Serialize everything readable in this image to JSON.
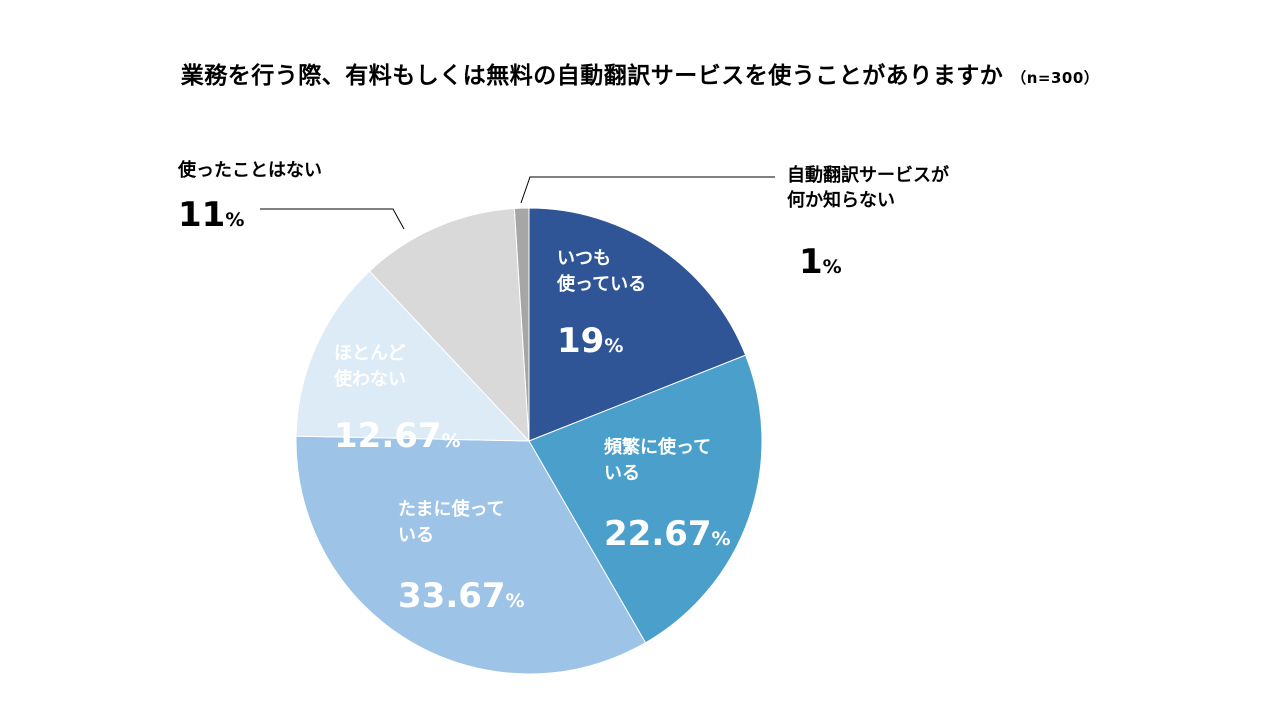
{
  "chart_data": {
    "type": "pie",
    "title": "業務を行う際、有料もしくは無料の自動翻訳サービスを使うことがありますか",
    "sample_note": "（n=300）",
    "start_angle_deg": 0,
    "direction": "clockwise",
    "slices": [
      {
        "label_lines": [
          "いつも",
          "使っている"
        ],
        "value": 19,
        "value_text": "19",
        "color": "#2F5597",
        "text_color": "#FFFFFF",
        "outside": false
      },
      {
        "label_lines": [
          "頻繁に使って",
          "いる"
        ],
        "value": 22.67,
        "value_text": "22.67",
        "color": "#4AA0CB",
        "text_color": "#FFFFFF",
        "outside": false
      },
      {
        "label_lines": [
          "たまに使って",
          "いる"
        ],
        "value": 33.67,
        "value_text": "33.67",
        "color": "#9DC3E6",
        "text_color": "#FFFFFF",
        "outside": false
      },
      {
        "label_lines": [
          "ほとんど",
          "使わない"
        ],
        "value": 12.67,
        "value_text": "12.67",
        "color": "#DDEBF7",
        "text_color": "#FFFFFF",
        "outside": false
      },
      {
        "label_lines": [
          "使ったことはない"
        ],
        "value": 11,
        "value_text": "11",
        "color": "#D9D9D9",
        "text_color": "#000000",
        "outside": true
      },
      {
        "label_lines": [
          "自動翻訳サービスが",
          "何か知らない"
        ],
        "value": 1,
        "value_text": "1",
        "color": "#A6A6A6",
        "text_color": "#000000",
        "outside": true
      }
    ],
    "percent_sign": "%"
  }
}
